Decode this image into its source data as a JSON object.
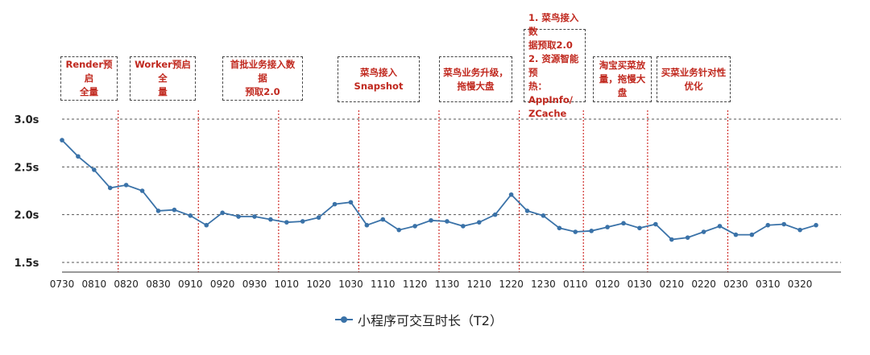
{
  "chart_data": {
    "type": "line",
    "ylim": [
      1.5,
      3.0
    ],
    "yticks": [
      "1.5s",
      "2.0s",
      "2.5s",
      "3.0s"
    ],
    "ytick_values": [
      1.5,
      2.0,
      2.5,
      3.0
    ],
    "x_tick_labels": [
      "0730",
      "0810",
      "0820",
      "0830",
      "0910",
      "0920",
      "0930",
      "1010",
      "1020",
      "1030",
      "1110",
      "1120",
      "1130",
      "1210",
      "1220",
      "1230",
      "0110",
      "0120",
      "0130",
      "0210",
      "0220",
      "0230",
      "0310",
      "0320"
    ],
    "x_tick_index": [
      0,
      2,
      4,
      6,
      8,
      10,
      12,
      14,
      16,
      18,
      20,
      22,
      24,
      26,
      28,
      30,
      32,
      34,
      36,
      38,
      40,
      42,
      44,
      46
    ],
    "series": [
      {
        "name": "小程序可交互时长（T2）",
        "color": "#3a72a8",
        "values": [
          2.78,
          2.61,
          2.47,
          2.28,
          2.31,
          2.25,
          2.04,
          2.05,
          1.99,
          1.89,
          2.02,
          1.98,
          1.98,
          1.95,
          1.92,
          1.93,
          1.97,
          2.11,
          2.13,
          1.89,
          1.95,
          1.84,
          1.88,
          1.94,
          1.93,
          1.88,
          1.92,
          2.0,
          2.21,
          2.04,
          1.99,
          1.86,
          1.82,
          1.83,
          1.87,
          1.91,
          1.86,
          1.9,
          1.74,
          1.76,
          1.82,
          1.88,
          1.79,
          1.79,
          1.89,
          1.9,
          1.84,
          1.89
        ]
      }
    ],
    "event_lines_index": [
      3.5,
      8.5,
      13.5,
      18.5,
      23.5,
      28.5,
      32.5,
      36.5,
      41.5
    ],
    "annotations": [
      "Render预启\n全量",
      "Worker预启全\n量",
      "首批业务接入数据\n预取2.0",
      "菜鸟接入Snapshot",
      "菜鸟业务升级，\n拖慢大盘",
      "1. 菜鸟接入数\n据预取2.0\n2. 资源智能预\n热：AppInfo/\nZCache",
      "淘宝买菜放\n量，拖慢大\n盘",
      "买菜业务针对性\n优化"
    ],
    "legend_position": "bottom-center",
    "grid": true,
    "grid_style": "dashed-horizontal"
  }
}
